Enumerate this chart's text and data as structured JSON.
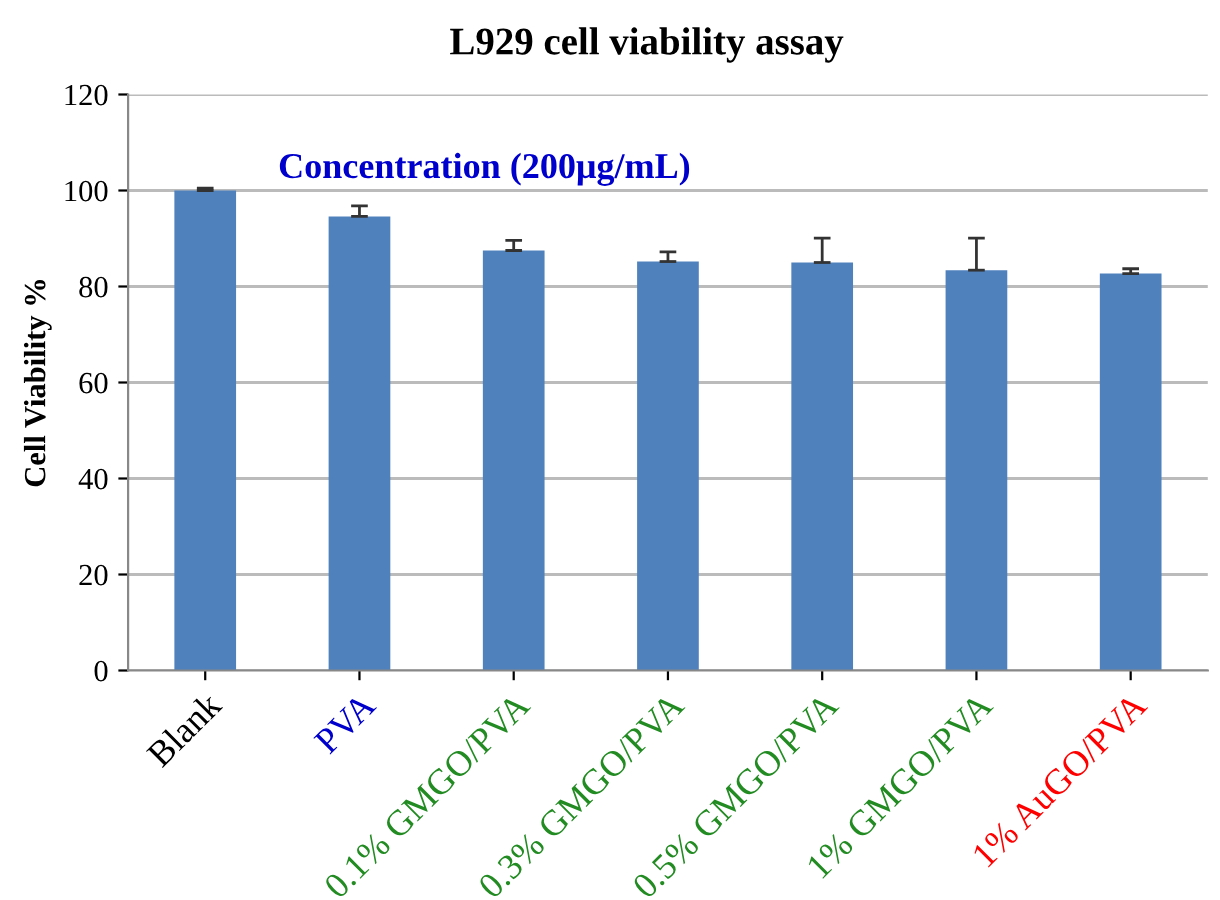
{
  "chart_data": {
    "type": "bar",
    "title": "L929 cell viability assay",
    "subtitle": "Concentration (200μg/mL)",
    "ylabel": "Cell Viability %",
    "categories": [
      "Blank",
      "PVA",
      "0.1% GMGO/PVA",
      "0.3% GMGO/PVA",
      "0.5% GMGO/PVA",
      "1% GMGO/PVA",
      "1% AuGO/PVA"
    ],
    "values": [
      100,
      94.6,
      87.5,
      85.2,
      85,
      83.4,
      82.7
    ],
    "errors": [
      [
        100,
        100.5
      ],
      [
        94.6,
        96.8
      ],
      [
        87.5,
        89.6
      ],
      [
        85.2,
        87.2
      ],
      [
        85,
        90.1
      ],
      [
        83.4,
        90.1
      ],
      [
        82.7,
        83.7
      ]
    ],
    "color": "#4f81bd",
    "ylim": [
      0,
      120
    ],
    "yticks": [
      0,
      20,
      40,
      60,
      80,
      100,
      120
    ],
    "grid": "y",
    "legend": false
  }
}
